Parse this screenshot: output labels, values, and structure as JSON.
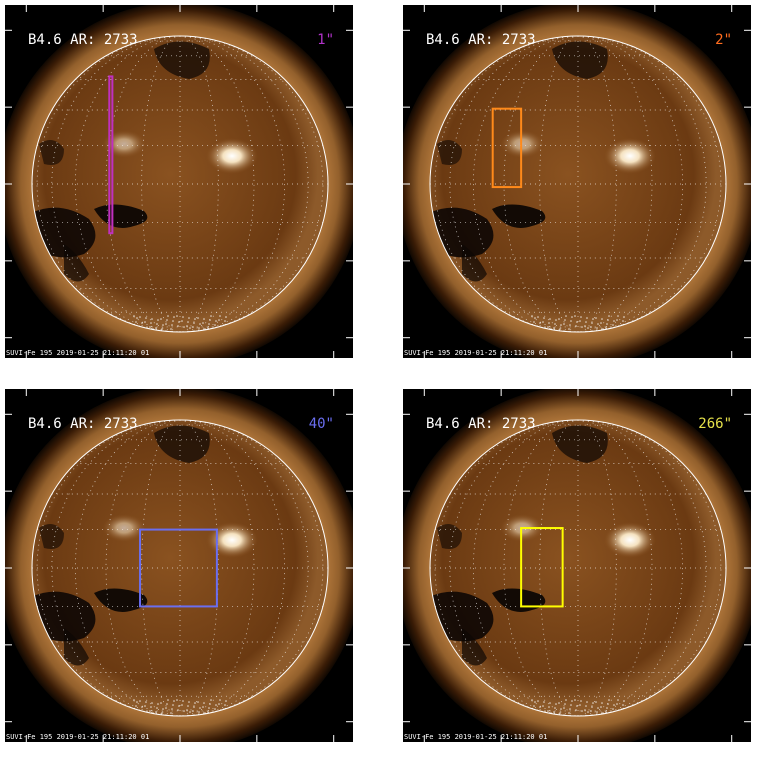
{
  "panels": [
    {
      "id": "tl",
      "header": "B4.6 AR: 2733",
      "resolution": "1\"",
      "resolution_color": "#b033c8",
      "box_color": "#c02fc0",
      "footer": "SUVI-Fe 195 2019-01-25 21:11:20 01",
      "box": {
        "x1": -460,
        "x2": -440,
        "y1": -320,
        "y2": 700
      },
      "show_x_axis": true,
      "show_y_axis": true
    },
    {
      "id": "tr",
      "header": "B4.6 AR: 2733",
      "resolution": "2\"",
      "resolution_color": "#ff6d1f",
      "box_color": "#ff8a1a",
      "footer": "SUVI-Fe 195 2019-01-25 21:11:20 01",
      "box": {
        "x1": -555,
        "x2": -370,
        "y1": -20,
        "y2": 490
      },
      "show_x_axis": true,
      "show_y_axis": true
    },
    {
      "id": "bl",
      "header": "B4.6 AR: 2733",
      "resolution": "40\"",
      "resolution_color": "#6a6ef0",
      "box_color": "#6a6ef0",
      "footer": "SUVI-Fe 195 2019-01-25 21:11:20 01",
      "box": {
        "x1": -260,
        "x2": 240,
        "y1": -250,
        "y2": 250
      },
      "show_x_axis": false,
      "show_y_axis": false
    },
    {
      "id": "br",
      "header": "B4.6 AR: 2733",
      "resolution": "266\"",
      "resolution_color": "#e5e04a",
      "box_color": "#ffff00",
      "footer": "SUVI-Fe 195 2019-01-25 21:11:20 01",
      "box": {
        "x1": -370,
        "x2": -100,
        "y1": -250,
        "y2": 260
      },
      "show_x_axis": false,
      "show_y_axis": true
    }
  ],
  "axis": {
    "x_ticks": [
      "-1000",
      "-500",
      "0",
      "500",
      "1000"
    ],
    "y_ticks": [
      "1000",
      "500",
      "0",
      "-500",
      "-1000"
    ],
    "x_tick_values": [
      -1000,
      -500,
      0,
      500,
      1000
    ],
    "y_tick_values": [
      1000,
      500,
      0,
      -500,
      -1000
    ]
  },
  "colors": {
    "background": "#000000",
    "disk_core": "#6b3a12",
    "disk_mid": "#8a5220",
    "corona_inner": "#b57a3d",
    "corona_outer": "#3a1c06",
    "limb_circle": "#ffffff",
    "active_region": "#f5e2c0",
    "coronal_hole": "#0d0704",
    "grid": "#ffffff"
  }
}
